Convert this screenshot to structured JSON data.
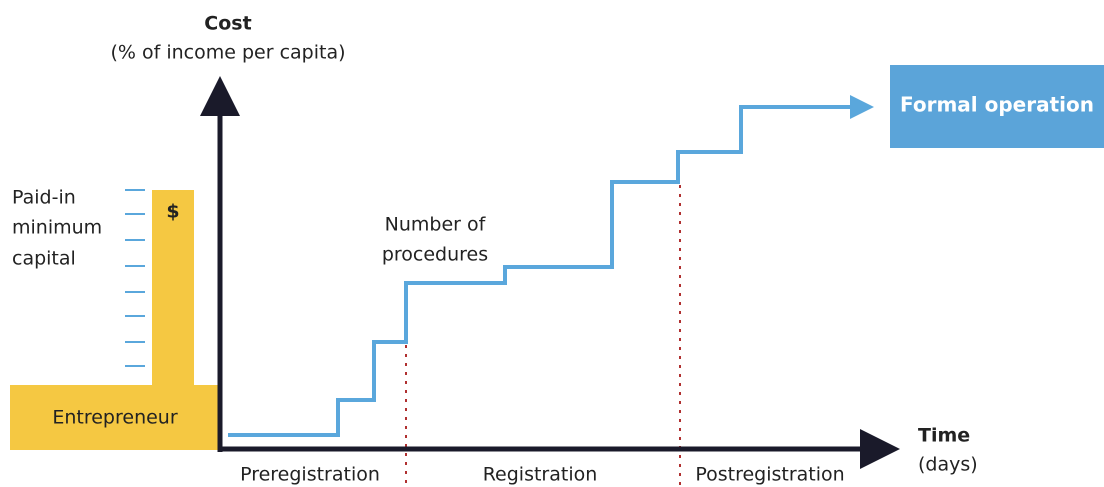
{
  "y_axis": {
    "title": "Cost",
    "subtitle": "(% of income per capita)"
  },
  "x_axis": {
    "title": "Time",
    "subtitle": "(days)"
  },
  "capital": {
    "lines": [
      "Paid-in",
      "minimum",
      "capital"
    ],
    "symbol": "$"
  },
  "entrepreneur": "Entrepreneur",
  "procedures": {
    "lines": [
      "Number of",
      "procedures"
    ]
  },
  "outcome": "Formal operation",
  "phases": [
    "Preregistration",
    "Registration",
    "Postregistration"
  ]
}
